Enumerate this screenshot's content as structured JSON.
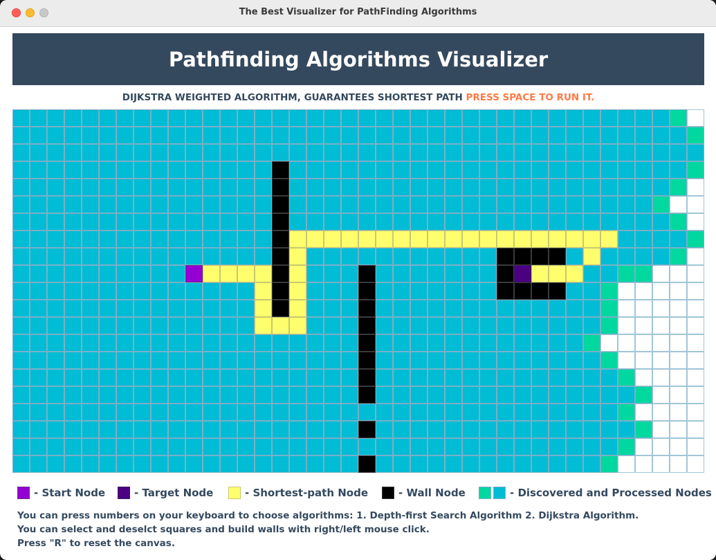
{
  "window": {
    "title": "The Best Visualizer for PathFinding Algorithms"
  },
  "header": {
    "title": "Pathfinding Algorithms Visualizer"
  },
  "subtitle": {
    "algorithm": "DIJKSTRA WEIGHTED ALGORITHM, GUARANTEES SHORTEST PATH",
    "action": "PRESS SPACE TO RUN IT."
  },
  "colors": {
    "processed": "#00bcd4",
    "discovered": "#00d8a0",
    "start": "#9400d3",
    "target": "#4b0082",
    "path": "#ffff6e",
    "wall": "#000000",
    "header_bg": "#34495e",
    "accent": "#ff7a45"
  },
  "grid": {
    "columns": 40,
    "rows": 21,
    "cell_codes": {
      ".": "processed",
      "d": "discovered",
      "e": "empty",
      "w": "wall",
      "p": "path",
      "s": "start",
      "t": "target"
    },
    "cells": [
      "......................................de",
      ".......................................d",
      "........................................",
      "...............w.......................d",
      "...............w......................de",
      "...............w.....................dee",
      "...............w......................de",
      "...............wppppppppppppppppppp....d",
      "...............wp...........wwww.p....de",
      "..........sppppwp...w.......wtppp..ddee",
      "..............pwp...w.......wwww..deeee",
      "..............pwp...w.............deeee",
      "..............ppp...w.............deeee",
      "....................w............deeeee",
      "....................w.............deeee",
      "....................w..............deee",
      "....................w...............dee",
      "...................................dee",
      "....................w...............dee",
      "...................................deee",
      "....................w.............deeee"
    ]
  },
  "legend": {
    "start": "- Start Node",
    "target": "- Target Node",
    "path": "- Shortest-path Node",
    "wall": "- Wall Node",
    "discovered": "- Discovered and Processed Nodes"
  },
  "help": {
    "line1": "You can press numbers on your keyboard to choose algorithms: 1. Depth-first Search Algorithm 2. Dijkstra Algorithm.",
    "line2": "You can select and deselct squares and build walls with right/left mouse click.",
    "line3": "Press \"R\" to reset the canvas."
  }
}
